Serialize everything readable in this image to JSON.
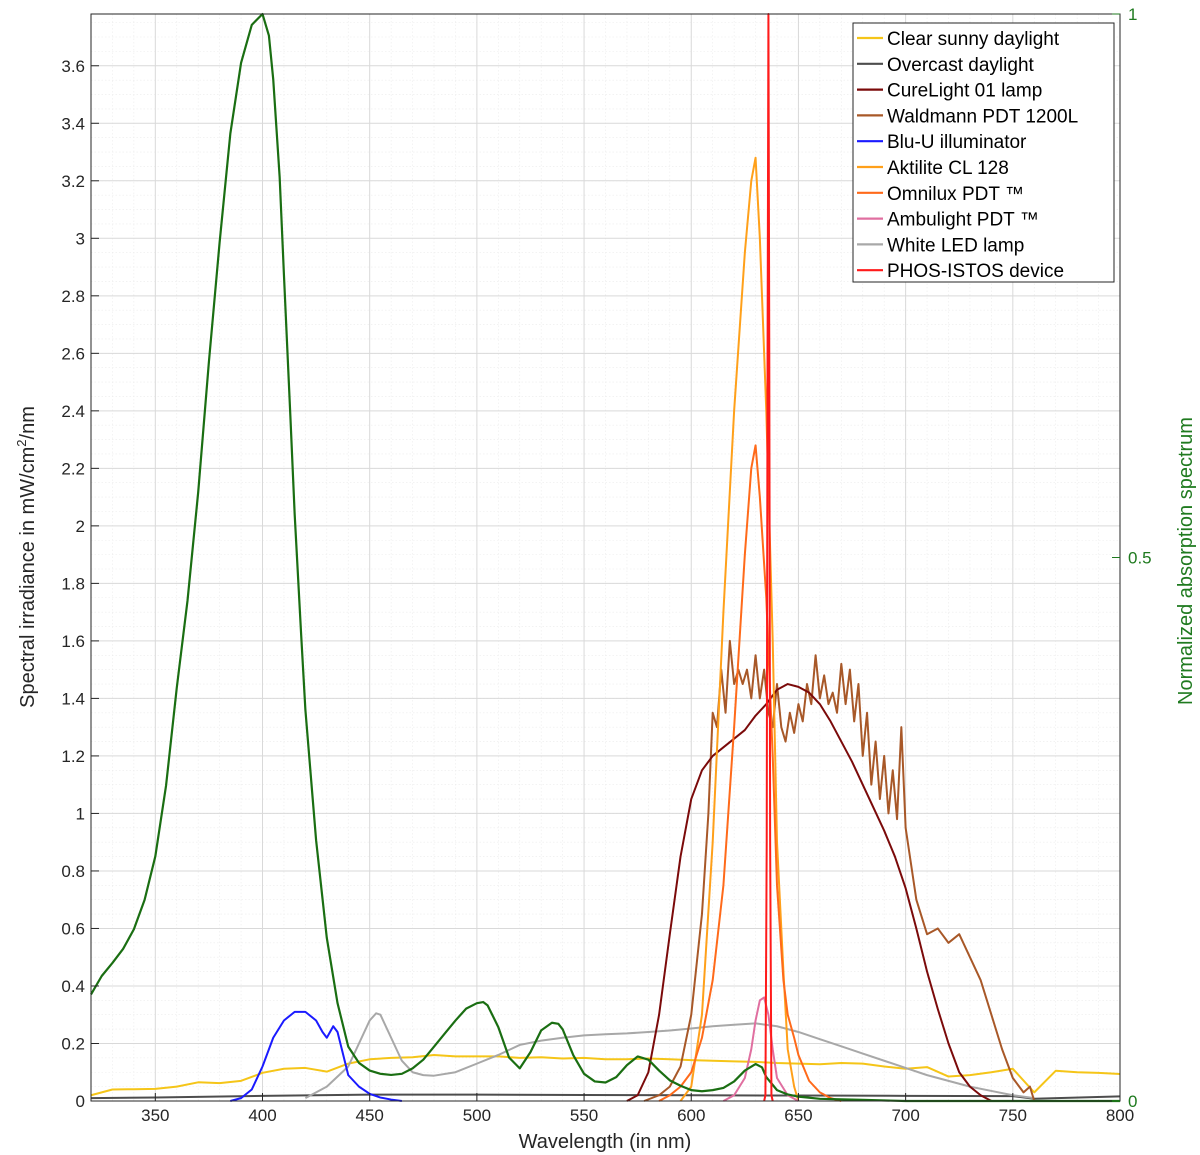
{
  "chart_data": {
    "type": "line",
    "xlabel": "Wavelength (in nm)",
    "ylabel_prefix": "Spectral irradiance in mW/cm",
    "ylabel_sup": "2",
    "ylabel_suffix": "/nm",
    "ylabel_right": "Normalized absorption spectrum",
    "xlim": [
      320,
      800
    ],
    "ylim": [
      0,
      3.78
    ],
    "ylim_right": [
      0,
      1
    ],
    "x_ticks": [
      350,
      400,
      450,
      500,
      550,
      600,
      650,
      700,
      750,
      800
    ],
    "y_ticks": [
      0,
      0.2,
      0.4,
      0.6,
      0.8,
      1,
      1.2,
      1.4,
      1.6,
      1.8,
      2,
      2.2,
      2.4,
      2.6,
      2.8,
      3,
      3.2,
      3.4,
      3.6
    ],
    "y_tick_labels": [
      "0",
      "0.2",
      "0.4",
      "0.6",
      "0.8",
      "1",
      "1.2",
      "1.4",
      "1.6",
      "1.8",
      "2",
      "2.2",
      "2.4",
      "2.6",
      "2.8",
      "3",
      "3.2",
      "3.4",
      "3.6"
    ],
    "y_right_ticks": [
      0,
      0.5,
      1
    ],
    "y_right_tick_labels": [
      "0",
      "0.5",
      "1"
    ],
    "grid": true,
    "minor_grid": true,
    "legend_position": "top-right",
    "absorption_color": "#1a6e12",
    "absorption": {
      "x": [
        320,
        325,
        330,
        335,
        340,
        345,
        350,
        355,
        360,
        365,
        370,
        375,
        380,
        385,
        390,
        395,
        400,
        403,
        405,
        408,
        410,
        413,
        415,
        418,
        420,
        425,
        430,
        435,
        440,
        445,
        450,
        455,
        460,
        465,
        470,
        475,
        480,
        485,
        490,
        495,
        500,
        503,
        505,
        510,
        515,
        520,
        525,
        530,
        535,
        538,
        540,
        545,
        550,
        555,
        560,
        565,
        570,
        575,
        580,
        585,
        590,
        595,
        600,
        605,
        610,
        615,
        620,
        625,
        630,
        633,
        635,
        640,
        645,
        650,
        660,
        680,
        700,
        750,
        800
      ],
      "y": [
        0.098,
        0.115,
        0.127,
        0.14,
        0.158,
        0.185,
        0.225,
        0.29,
        0.38,
        0.46,
        0.56,
        0.68,
        0.79,
        0.89,
        0.955,
        0.99,
        1.0,
        0.98,
        0.94,
        0.85,
        0.76,
        0.63,
        0.54,
        0.43,
        0.36,
        0.24,
        0.15,
        0.09,
        0.05,
        0.035,
        0.028,
        0.025,
        0.024,
        0.025,
        0.03,
        0.038,
        0.05,
        0.062,
        0.074,
        0.085,
        0.09,
        0.091,
        0.088,
        0.068,
        0.04,
        0.03,
        0.045,
        0.065,
        0.072,
        0.071,
        0.066,
        0.042,
        0.025,
        0.018,
        0.017,
        0.022,
        0.033,
        0.041,
        0.038,
        0.028,
        0.019,
        0.014,
        0.01,
        0.009,
        0.01,
        0.012,
        0.018,
        0.028,
        0.034,
        0.031,
        0.022,
        0.01,
        0.006,
        0.004,
        0.002,
        0.001,
        0.0,
        0.0,
        0.0
      ]
    },
    "series": [
      {
        "name": "Clear sunny daylight",
        "color": "#f5c518",
        "x": [
          320,
          325,
          330,
          340,
          350,
          360,
          370,
          380,
          390,
          400,
          410,
          420,
          430,
          440,
          450,
          460,
          470,
          480,
          490,
          500,
          510,
          520,
          530,
          540,
          550,
          560,
          570,
          580,
          590,
          600,
          610,
          620,
          630,
          640,
          650,
          660,
          670,
          680,
          690,
          700,
          710,
          720,
          730,
          740,
          750,
          760,
          770,
          780,
          790,
          800
        ],
        "y": [
          0.02,
          0.03,
          0.04,
          0.041,
          0.042,
          0.05,
          0.065,
          0.062,
          0.07,
          0.098,
          0.112,
          0.115,
          0.102,
          0.13,
          0.145,
          0.15,
          0.152,
          0.16,
          0.155,
          0.155,
          0.155,
          0.15,
          0.152,
          0.148,
          0.15,
          0.145,
          0.145,
          0.148,
          0.145,
          0.142,
          0.14,
          0.138,
          0.136,
          0.132,
          0.13,
          0.128,
          0.132,
          0.13,
          0.12,
          0.112,
          0.118,
          0.085,
          0.09,
          0.1,
          0.112,
          0.03,
          0.105,
          0.1,
          0.098,
          0.094
        ]
      },
      {
        "name": "Overcast daylight",
        "color": "#4d4d4d",
        "x": [
          320,
          350,
          400,
          450,
          500,
          550,
          600,
          650,
          700,
          750,
          760,
          800
        ],
        "y": [
          0.01,
          0.012,
          0.018,
          0.022,
          0.022,
          0.021,
          0.02,
          0.019,
          0.018,
          0.017,
          0.008,
          0.016
        ]
      },
      {
        "name": "CureLight 01 lamp",
        "color": "#7b0a0a",
        "x": [
          570,
          575,
          580,
          585,
          590,
          595,
          600,
          605,
          610,
          615,
          620,
          625,
          630,
          635,
          640,
          645,
          650,
          655,
          660,
          665,
          670,
          675,
          680,
          685,
          690,
          695,
          700,
          705,
          710,
          715,
          720,
          725,
          730,
          735,
          740
        ],
        "y": [
          0.0,
          0.02,
          0.1,
          0.3,
          0.58,
          0.85,
          1.05,
          1.15,
          1.2,
          1.23,
          1.26,
          1.29,
          1.34,
          1.38,
          1.43,
          1.45,
          1.44,
          1.42,
          1.38,
          1.32,
          1.25,
          1.18,
          1.1,
          1.02,
          0.94,
          0.85,
          0.74,
          0.6,
          0.45,
          0.32,
          0.2,
          0.1,
          0.05,
          0.02,
          0.0
        ]
      },
      {
        "name": "Waldmann PDT 1200L",
        "color": "#a85828",
        "x": [
          578,
          585,
          590,
          595,
          600,
          605,
          608,
          610,
          612,
          614,
          616,
          618,
          620,
          622,
          624,
          626,
          628,
          630,
          632,
          634,
          636,
          638,
          640,
          642,
          644,
          646,
          648,
          650,
          652,
          654,
          656,
          658,
          660,
          662,
          664,
          666,
          668,
          670,
          672,
          674,
          676,
          678,
          680,
          682,
          684,
          686,
          688,
          690,
          692,
          694,
          696,
          698,
          700,
          705,
          710,
          715,
          720,
          725,
          730,
          735,
          740,
          745,
          750,
          755,
          758,
          760
        ],
        "y": [
          0.0,
          0.02,
          0.05,
          0.12,
          0.3,
          0.65,
          1.0,
          1.35,
          1.3,
          1.5,
          1.35,
          1.6,
          1.45,
          1.5,
          1.45,
          1.5,
          1.4,
          1.55,
          1.4,
          1.5,
          1.35,
          1.3,
          1.45,
          1.3,
          1.25,
          1.35,
          1.28,
          1.38,
          1.32,
          1.45,
          1.38,
          1.55,
          1.4,
          1.48,
          1.38,
          1.42,
          1.35,
          1.52,
          1.38,
          1.5,
          1.32,
          1.45,
          1.2,
          1.35,
          1.1,
          1.25,
          1.05,
          1.2,
          1.0,
          1.15,
          0.98,
          1.3,
          0.95,
          0.7,
          0.58,
          0.6,
          0.55,
          0.58,
          0.5,
          0.42,
          0.3,
          0.18,
          0.08,
          0.03,
          0.05,
          0.0
        ]
      },
      {
        "name": "Blu-U illuminator",
        "color": "#1a1aff",
        "x": [
          385,
          390,
          395,
          400,
          405,
          410,
          415,
          420,
          425,
          428,
          430,
          433,
          435,
          438,
          440,
          445,
          450,
          455,
          460,
          465
        ],
        "y": [
          0.0,
          0.01,
          0.04,
          0.12,
          0.22,
          0.28,
          0.31,
          0.31,
          0.28,
          0.24,
          0.22,
          0.26,
          0.24,
          0.15,
          0.09,
          0.05,
          0.025,
          0.012,
          0.005,
          0.0
        ]
      },
      {
        "name": "Aktilite CL 128",
        "color": "#ffa01a",
        "x": [
          595,
          600,
          605,
          610,
          615,
          620,
          625,
          628,
          630,
          632,
          635,
          638,
          640,
          643,
          645,
          648,
          650
        ],
        "y": [
          0.0,
          0.05,
          0.3,
          0.9,
          1.7,
          2.4,
          2.95,
          3.2,
          3.28,
          3.0,
          2.4,
          1.6,
          0.9,
          0.45,
          0.18,
          0.05,
          0.0
        ]
      },
      {
        "name": "Omnilux PDT ™",
        "color": "#ff6a1a",
        "x": [
          585,
          590,
          595,
          600,
          605,
          610,
          615,
          620,
          625,
          628,
          630,
          632,
          635,
          638,
          640,
          643,
          645,
          648,
          650,
          655,
          660,
          665,
          670
        ],
        "y": [
          0.0,
          0.02,
          0.05,
          0.1,
          0.22,
          0.42,
          0.75,
          1.3,
          1.9,
          2.2,
          2.28,
          2.1,
          1.75,
          1.2,
          0.75,
          0.42,
          0.3,
          0.22,
          0.16,
          0.07,
          0.03,
          0.01,
          0.0
        ]
      },
      {
        "name": "Ambulight PDT ™",
        "color": "#e06fa0",
        "x": [
          615,
          620,
          625,
          628,
          630,
          632,
          634,
          636,
          638,
          640,
          645,
          650
        ],
        "y": [
          0.0,
          0.02,
          0.08,
          0.18,
          0.28,
          0.35,
          0.36,
          0.3,
          0.18,
          0.08,
          0.02,
          0.0
        ]
      },
      {
        "name": "White LED lamp",
        "color": "#a8a8a8",
        "x": [
          420,
          430,
          440,
          445,
          450,
          453,
          455,
          460,
          465,
          470,
          475,
          480,
          490,
          500,
          510,
          520,
          530,
          540,
          550,
          560,
          570,
          580,
          590,
          600,
          610,
          620,
          630,
          640,
          650,
          660,
          670,
          680,
          690,
          700,
          710,
          720,
          730,
          740,
          750,
          760
        ],
        "y": [
          0.01,
          0.05,
          0.12,
          0.2,
          0.28,
          0.305,
          0.3,
          0.22,
          0.14,
          0.1,
          0.09,
          0.088,
          0.1,
          0.13,
          0.16,
          0.195,
          0.21,
          0.22,
          0.228,
          0.232,
          0.235,
          0.24,
          0.245,
          0.252,
          0.26,
          0.265,
          0.27,
          0.26,
          0.24,
          0.215,
          0.19,
          0.165,
          0.14,
          0.115,
          0.09,
          0.07,
          0.05,
          0.035,
          0.02,
          0.01
        ]
      },
      {
        "name": "PHOS-ISTOS device",
        "color": "#ff1a1a",
        "x": [
          634,
          634.6,
          635.2,
          635.6,
          636,
          636.4,
          636.8,
          637.4,
          638
        ],
        "y": [
          0.0,
          0.02,
          0.9,
          2.6,
          3.78,
          2.6,
          0.9,
          0.02,
          0.0
        ]
      }
    ]
  }
}
